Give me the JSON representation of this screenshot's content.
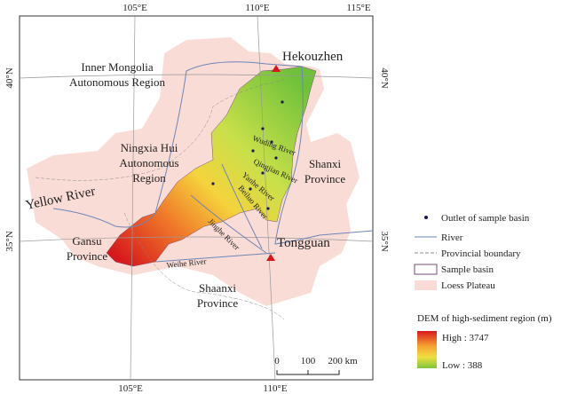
{
  "map": {
    "graticule": {
      "top": [
        "105°E",
        "110°E",
        "115°E"
      ],
      "bottom": [
        "105°E",
        "110°E"
      ],
      "left": [
        "40°N",
        "35°N"
      ],
      "right": [
        "40°N",
        "35°N"
      ]
    },
    "regions": {
      "inner_mongolia": [
        "Inner Mongolia",
        "Autonomous Region"
      ],
      "ningxia": [
        "Ningxia Hui",
        "Autonomous",
        "Region"
      ],
      "shanxi": [
        "Shanxi",
        "Province"
      ],
      "gansu": [
        "Gansu",
        "Province"
      ],
      "shaanxi": [
        "Shaanxi",
        "Province"
      ]
    },
    "stations": {
      "hekouzhen": "Hekouzhen",
      "tongguan": "Tongguan"
    },
    "rivers": {
      "yellow": "Yellow River",
      "wuding": "Wuding River",
      "qingjian": "Qingjian River",
      "yanhe": "Yanhe River",
      "beiluo": "Beiluo River",
      "jinghe": "Jinghe River",
      "weihe": "Weihe River"
    }
  },
  "legend": {
    "items": [
      "Outlet of sample basin",
      "River",
      "Provincial boundary",
      "Sample basin",
      "Loess Plateau"
    ],
    "dem_title": "DEM of high-sediment region (m)",
    "dem_high": "High : 3747",
    "dem_low": "Low : 388"
  },
  "scale_bar": {
    "labels": [
      "0",
      "100",
      "200 km"
    ]
  }
}
